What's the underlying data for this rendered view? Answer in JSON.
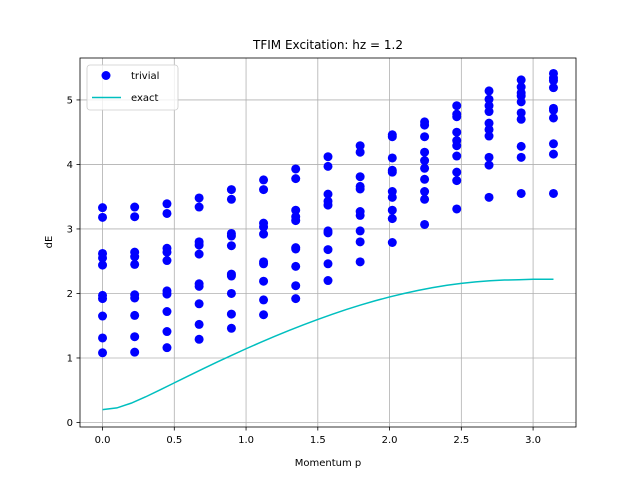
{
  "chart_data": {
    "type": "scatter",
    "title": "TFIM Excitation: hz = 1.2",
    "xlabel": "Momentum p",
    "ylabel": "dE",
    "xlim": [
      -0.157,
      3.299
    ],
    "ylim": [
      -0.07,
      5.65
    ],
    "xticks": [
      0.0,
      0.5,
      1.0,
      1.5,
      2.0,
      2.5,
      3.0
    ],
    "xtick_labels": [
      "0.0",
      "0.5",
      "1.0",
      "1.5",
      "2.0",
      "2.5",
      "3.0"
    ],
    "yticks": [
      0,
      1,
      2,
      3,
      4,
      5
    ],
    "ytick_labels": [
      "0",
      "1",
      "2",
      "3",
      "4",
      "5"
    ],
    "grid": true,
    "legend_position": "top-left",
    "colors": {
      "trivial": "#0000ff",
      "exact": "#00bfbf"
    },
    "series": [
      {
        "name": "trivial",
        "kind": "markers",
        "columns": [
          {
            "x": 0.0,
            "y": [
              1.08,
              1.31,
              1.65,
              1.92,
              1.97,
              2.44,
              2.55,
              2.62,
              3.18,
              3.33
            ]
          },
          {
            "x": 0.224,
            "y": [
              1.09,
              1.33,
              1.66,
              1.93,
              1.98,
              2.45,
              2.57,
              2.64,
              3.19,
              3.34
            ]
          },
          {
            "x": 0.449,
            "y": [
              1.16,
              1.41,
              1.72,
              1.99,
              2.04,
              2.51,
              2.64,
              2.7,
              3.24,
              3.39
            ]
          },
          {
            "x": 0.673,
            "y": [
              1.29,
              1.52,
              1.84,
              2.11,
              2.15,
              2.61,
              2.75,
              2.8,
              3.34,
              3.48
            ]
          },
          {
            "x": 0.898,
            "y": [
              1.46,
              1.68,
              2.0,
              2.27,
              2.3,
              2.74,
              2.89,
              2.93,
              3.46,
              3.61
            ]
          },
          {
            "x": 1.122,
            "y": [
              1.67,
              1.9,
              2.19,
              2.46,
              2.49,
              2.92,
              3.03,
              3.09,
              3.61,
              3.76
            ]
          },
          {
            "x": 1.346,
            "y": [
              1.92,
              2.12,
              2.42,
              2.69,
              2.71,
              3.13,
              3.19,
              3.29,
              3.78,
              3.93
            ]
          },
          {
            "x": 1.571,
            "y": [
              2.2,
              2.46,
              2.68,
              2.94,
              2.97,
              3.37,
              3.43,
              3.54,
              3.97,
              4.12
            ]
          },
          {
            "x": 1.795,
            "y": [
              2.49,
              2.8,
              2.97,
              3.21,
              3.27,
              3.62,
              3.66,
              3.81,
              4.19,
              4.29
            ]
          },
          {
            "x": 2.019,
            "y": [
              2.79,
              3.16,
              3.29,
              3.49,
              3.58,
              3.88,
              3.91,
              4.1,
              4.43,
              4.46
            ]
          },
          {
            "x": 2.244,
            "y": [
              3.07,
              3.46,
              3.58,
              3.77,
              3.94,
              4.06,
              4.19,
              4.43,
              4.61,
              4.66
            ]
          },
          {
            "x": 2.468,
            "y": [
              3.31,
              3.75,
              3.88,
              4.13,
              4.29,
              4.37,
              4.5,
              4.74,
              4.78,
              4.91
            ]
          },
          {
            "x": 2.693,
            "y": [
              3.49,
              3.99,
              4.11,
              4.44,
              4.54,
              4.64,
              4.82,
              4.91,
              5.01,
              5.14
            ]
          },
          {
            "x": 2.917,
            "y": [
              3.55,
              4.11,
              4.28,
              4.7,
              4.8,
              4.97,
              5.06,
              5.11,
              5.2,
              5.31
            ]
          },
          {
            "x": 3.142,
            "y": [
              3.55,
              4.16,
              4.32,
              4.72,
              4.84,
              4.87,
              5.19,
              5.3,
              5.34,
              5.41
            ]
          }
        ]
      },
      {
        "name": "exact",
        "kind": "line",
        "x": [
          0.0,
          0.1,
          0.2,
          0.3,
          0.4,
          0.5,
          0.6,
          0.7,
          0.8,
          0.9,
          1.0,
          1.1,
          1.2,
          1.3,
          1.4,
          1.5,
          1.6,
          1.7,
          1.8,
          1.9,
          2.0,
          2.1,
          2.2,
          2.3,
          2.4,
          2.5,
          2.6,
          2.7,
          2.8,
          2.9,
          3.0,
          3.1,
          3.142
        ],
        "y": [
          0.2,
          0.226,
          0.3,
          0.397,
          0.504,
          0.614,
          0.724,
          0.832,
          0.939,
          1.042,
          1.143,
          1.241,
          1.336,
          1.427,
          1.514,
          1.598,
          1.677,
          1.752,
          1.822,
          1.887,
          1.946,
          2.0,
          2.048,
          2.091,
          2.127,
          2.156,
          2.18,
          2.197,
          2.208,
          2.213,
          2.22,
          2.22,
          2.22
        ]
      }
    ]
  }
}
